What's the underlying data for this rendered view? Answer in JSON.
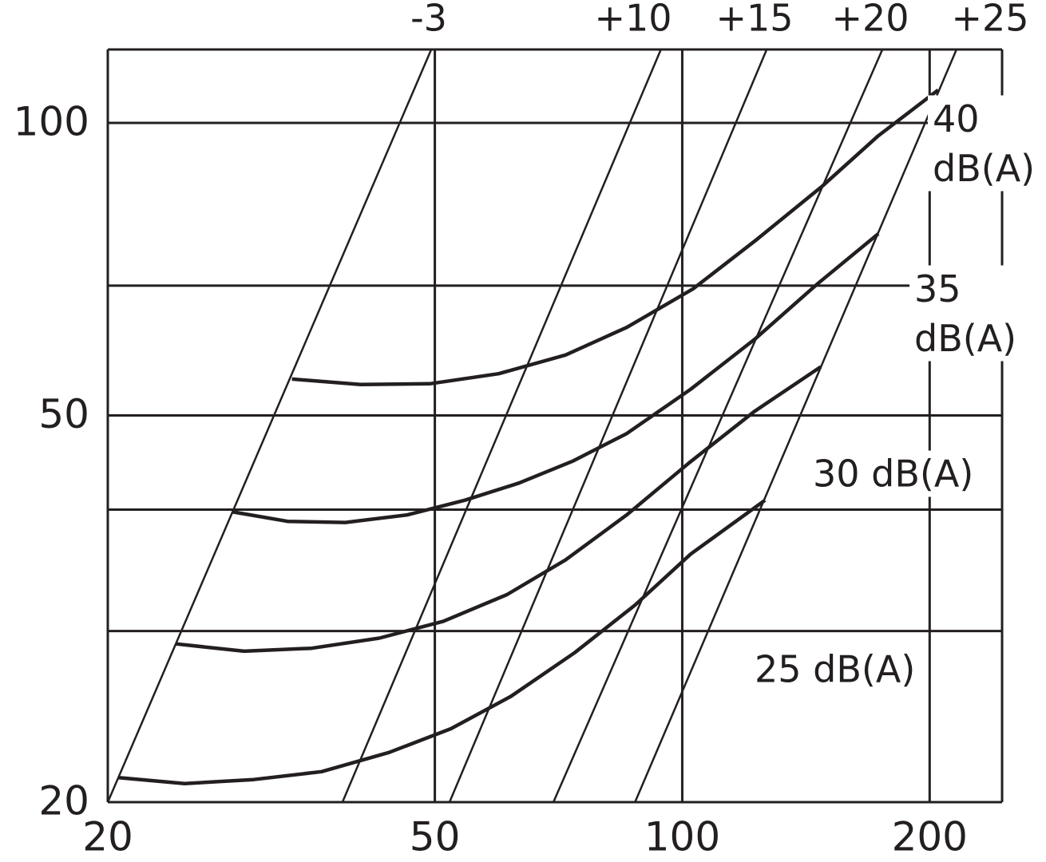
{
  "chart_data": {
    "type": "line",
    "xscale": "log",
    "yscale": "log",
    "xlim": [
      20,
      245
    ],
    "ylim": [
      20,
      119
    ],
    "xticks": [
      20,
      50,
      100,
      200
    ],
    "yticks": [
      20,
      50,
      100
    ],
    "ygrid": [
      30,
      40,
      50,
      68,
      100
    ],
    "color": "#231f20",
    "curves": [
      {
        "name": "40 dB(A)",
        "x": [
          33.5,
          40.6,
          49.3,
          59.8,
          72.1,
          85.6,
          103.1,
          123.3,
          148.1,
          173.2,
          204.8
        ],
        "values": [
          54.5,
          53.8,
          53.9,
          55.2,
          57.7,
          61.6,
          67.5,
          75.9,
          86.1,
          97.0,
          108.1
        ]
      },
      {
        "name": "35 dB(A)",
        "x": [
          28.3,
          33.1,
          38.9,
          46.3,
          54.4,
          63.3,
          73.7,
          85.6,
          102.4,
          122.5,
          146.4,
          173.2
        ],
        "values": [
          39.8,
          38.9,
          38.8,
          39.5,
          40.9,
          42.6,
          44.9,
          47.9,
          53.2,
          59.9,
          68.4,
          76.9
        ]
      },
      {
        "name": "30 dB(A)",
        "x": [
          24.2,
          29.3,
          35.4,
          42.8,
          51.2,
          61.2,
          72.1,
          85.6,
          102,
          122.5,
          147.4
        ],
        "values": [
          29.1,
          28.6,
          28.8,
          29.5,
          30.7,
          32.7,
          35.5,
          39.5,
          44.7,
          50.5,
          56.1
        ]
      },
      {
        "name": "25 dB(A)",
        "x": [
          20.6,
          24.8,
          30.1,
          36.4,
          44.0,
          52.3,
          61.9,
          74.0,
          87.6,
          102.4,
          126.1
        ],
        "values": [
          21.2,
          20.9,
          21.1,
          21.5,
          22.5,
          23.8,
          25.7,
          28.5,
          31.9,
          36.0,
          40.9
        ]
      }
    ],
    "diagonals": [
      {
        "name": "-3",
        "x": [
          20,
          49.5
        ],
        "values": [
          20,
          119
        ]
      },
      {
        "name": "+10",
        "x": [
          38.6,
          94.2
        ],
        "values": [
          20,
          119
        ]
      },
      {
        "name": "+15",
        "x": [
          52.1,
          126.7
        ],
        "values": [
          20,
          119
        ]
      },
      {
        "name": "+20",
        "x": [
          69.7,
          175.2
        ],
        "values": [
          20,
          119
        ]
      },
      {
        "name": "+25",
        "x": [
          87.6,
          215.6
        ],
        "values": [
          20,
          119
        ]
      }
    ]
  }
}
